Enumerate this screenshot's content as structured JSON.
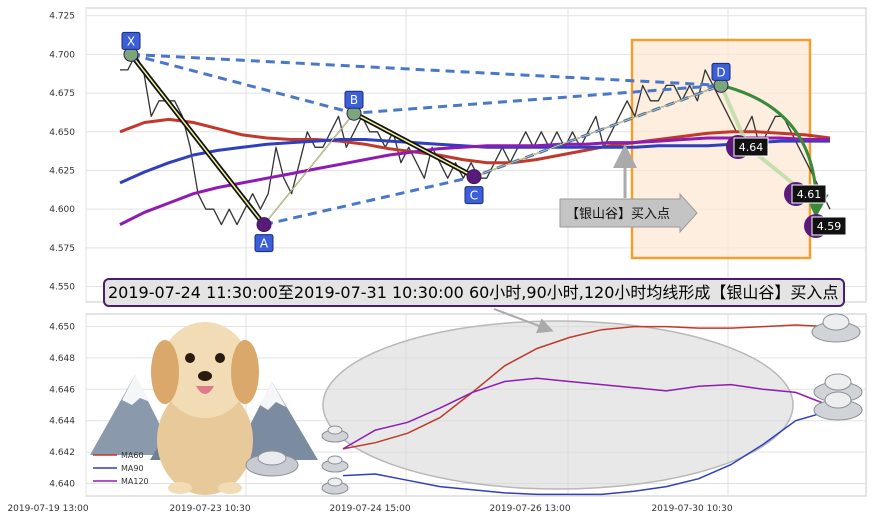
{
  "chart_data": [
    {
      "type": "line",
      "panel": "upper",
      "ylim": [
        4.54,
        4.73
      ],
      "y_ticks": [
        "4.725",
        "4.700",
        "4.675",
        "4.650",
        "4.625",
        "4.600",
        "4.575",
        "4.550"
      ],
      "series": [
        {
          "name": "",
          "color": "#333333",
          "values": [
            4.69,
            4.69,
            4.7,
            4.69,
            4.66,
            4.67,
            4.67,
            4.67,
            4.66,
            4.64,
            4.61,
            4.6,
            4.6,
            4.59,
            4.6,
            4.59,
            4.6,
            4.61,
            4.6,
            4.61,
            4.64,
            4.62,
            4.61,
            4.63,
            4.65,
            4.64,
            4.64,
            4.65,
            4.66,
            4.64,
            4.65,
            4.66,
            4.65,
            4.65,
            4.64,
            4.65,
            4.63,
            4.64,
            4.63,
            4.62,
            4.64,
            4.63,
            4.62,
            4.63,
            4.62,
            4.63,
            4.62,
            4.62,
            4.63,
            4.64,
            4.63,
            4.64,
            4.65,
            4.64,
            4.65,
            4.64,
            4.65,
            4.64,
            4.65,
            4.64,
            4.65,
            4.66,
            4.64,
            4.65,
            4.66,
            4.67,
            4.66,
            4.68,
            4.67,
            4.67,
            4.68,
            4.68,
            4.67,
            4.68,
            4.67,
            4.69,
            4.68,
            4.67,
            4.66,
            4.65,
            4.65,
            4.66,
            4.64,
            4.65,
            4.66,
            4.66,
            4.65,
            4.64,
            4.63,
            4.62,
            4.61,
            4.6
          ]
        },
        {
          "name": "MA60",
          "color": "#c0392b",
          "values": [
            4.65,
            4.656,
            4.658,
            4.656,
            4.652,
            4.648,
            4.646,
            4.645,
            4.645,
            4.644,
            4.642,
            4.639,
            4.637,
            4.635,
            4.632,
            4.63,
            4.63,
            4.632,
            4.635,
            4.638,
            4.641,
            4.643,
            4.645,
            4.647,
            4.649,
            4.65,
            4.65,
            4.649,
            4.648,
            4.646
          ]
        },
        {
          "name": "MA90",
          "color": "#2e3fbf",
          "values": [
            4.617,
            4.624,
            4.63,
            4.635,
            4.638,
            4.64,
            4.642,
            4.643,
            4.644,
            4.645,
            4.645,
            4.644,
            4.643,
            4.642,
            4.641,
            4.64,
            4.64,
            4.64,
            4.64,
            4.64,
            4.64,
            4.64,
            4.641,
            4.641,
            4.641,
            4.642,
            4.643,
            4.644,
            4.644,
            4.644
          ]
        },
        {
          "name": "MA120",
          "color": "#8e1cb3",
          "values": [
            4.59,
            4.598,
            4.604,
            4.61,
            4.614,
            4.617,
            4.62,
            4.623,
            4.626,
            4.629,
            4.632,
            4.635,
            4.637,
            4.639,
            4.64,
            4.641,
            4.641,
            4.641,
            4.642,
            4.642,
            4.643,
            4.643,
            4.644,
            4.645,
            4.646,
            4.646,
            4.646,
            4.646,
            4.645,
            4.645
          ]
        }
      ],
      "pattern_points": [
        {
          "label": "X",
          "value": 4.7
        },
        {
          "label": "A",
          "value": 4.59
        },
        {
          "label": "B",
          "value": 4.662
        },
        {
          "label": "C",
          "value": 4.621
        },
        {
          "label": "D",
          "value": 4.68
        }
      ],
      "price_labels": [
        "4.64",
        "4.61",
        "4.59"
      ],
      "price_label_values": [
        4.64,
        4.611,
        4.592
      ],
      "annotation": "【银山谷】买入点",
      "banner": "2019-07-24 11:30:00至2019-07-31 10:30:00 60小时,90小时,120小时均线形成【银山谷】买入点"
    },
    {
      "type": "line",
      "panel": "lower",
      "ylim": [
        4.6392,
        4.6508
      ],
      "y_ticks": [
        "4.650",
        "4.648",
        "4.646",
        "4.644",
        "4.642",
        "4.640"
      ],
      "x_ticks": [
        "2019-07-19 13:00",
        "2019-07-23 10:30",
        "2019-07-24 15:00",
        "2019-07-26 13:00",
        "2019-07-30 10:30"
      ],
      "legend": [
        "MA60",
        "MA90",
        "MA120"
      ],
      "series": [
        {
          "name": "MA60",
          "color": "#c0392b",
          "values": [
            4.6422,
            4.6426,
            4.6432,
            4.6442,
            4.6458,
            4.6475,
            4.6486,
            4.6493,
            4.6498,
            4.65,
            4.65,
            4.6499,
            4.6499,
            4.65,
            4.6501,
            4.65
          ]
        },
        {
          "name": "MA90",
          "color": "#2e3fbf",
          "values": [
            4.6405,
            4.6406,
            4.6402,
            4.6398,
            4.6396,
            4.6394,
            4.6393,
            4.6393,
            4.6393,
            4.6395,
            4.6398,
            4.6403,
            4.6412,
            4.6425,
            4.644,
            4.6446
          ]
        },
        {
          "name": "MA120",
          "color": "#8e1cb3",
          "values": [
            4.6422,
            4.6434,
            4.6439,
            4.6448,
            4.6458,
            4.6465,
            4.6467,
            4.6465,
            4.6463,
            4.6461,
            4.6459,
            4.6462,
            4.6463,
            4.646,
            4.6458,
            4.645
          ]
        }
      ]
    }
  ]
}
